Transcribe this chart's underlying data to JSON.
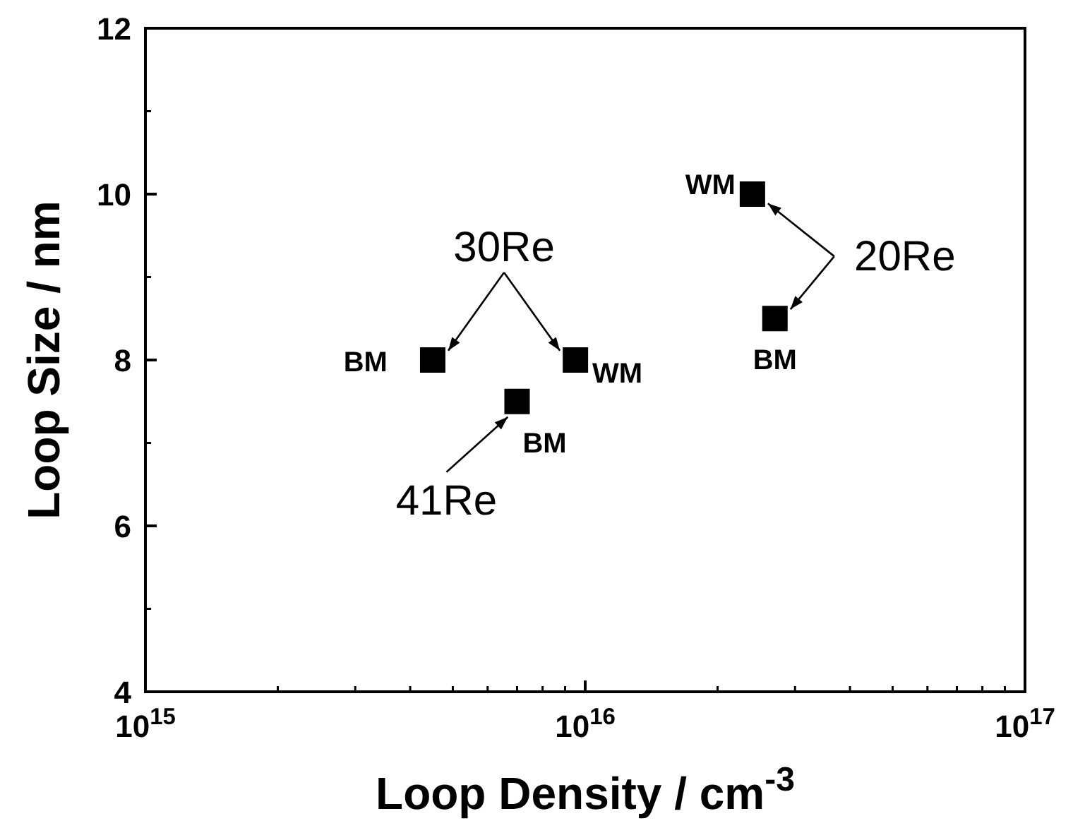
{
  "chart_data": {
    "type": "scatter",
    "xlabel": "Loop Density / cm$^{-3}$",
    "ylabel": "Loop Size / nm",
    "log": "x",
    "xlim": [
      1000000000000000.0,
      1e+17
    ],
    "xticks": [
      {
        "value": 1000000000000000.0,
        "label": "10$^{15}$"
      },
      {
        "value": 1e+16,
        "label": "10$^{16}$"
      },
      {
        "value": 1e+17,
        "label": "10$^{17}$"
      }
    ],
    "ylim": [
      4,
      12
    ],
    "yticks": [
      4,
      6,
      8,
      10,
      12
    ],
    "marker": "square",
    "grid": false,
    "series": [
      {
        "name": "30Re",
        "color": "#000000",
        "x": [
          4500000000000000.0,
          9500000000000000.0
        ],
        "values": [
          8,
          8
        ],
        "value_labels": [
          "BM",
          "WM"
        ]
      },
      {
        "name": "41Re",
        "color": "#000000",
        "x": [
          7000000000000000.0
        ],
        "values": [
          7.5
        ],
        "value_labels": [
          "BM"
        ]
      },
      {
        "name": "20Re",
        "color": "#000000",
        "x": [
          2.4e+16,
          2.7e+16
        ],
        "values": [
          10,
          8.5
        ],
        "value_labels": [
          "WM",
          "BM"
        ]
      }
    ]
  }
}
